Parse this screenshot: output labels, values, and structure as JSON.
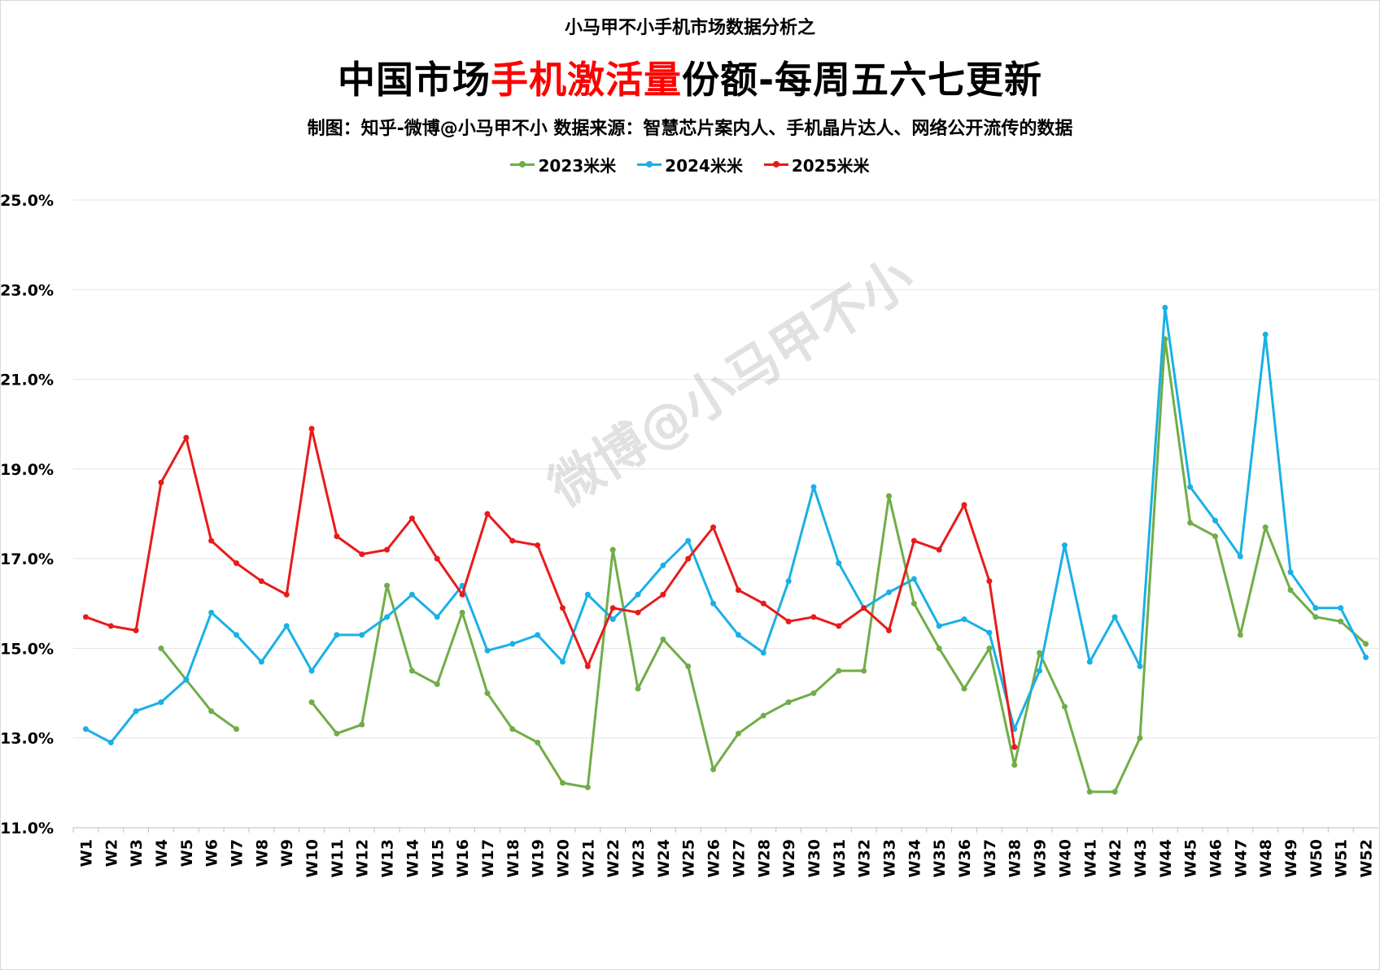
{
  "header": {
    "supertitle": "小马甲不小手机市场数据分析之",
    "title_part1": "中国市场",
    "title_highlight": "手机激活量",
    "title_part2": "份额-每周五六七更新",
    "subtitle": "制图：知乎-微博@小马甲不小  数据来源：智慧芯片案内人、手机晶片达人、网络公开流传的数据"
  },
  "watermark": "微博@小马甲不小",
  "colors": {
    "highlight": "#ff0000",
    "s2023": "#70ad47",
    "s2024": "#1ab0e6",
    "s2025": "#e81b1b"
  },
  "chart_data": {
    "type": "line",
    "title": "中国市场手机激活量份额-每周五六七更新",
    "xlabel": "",
    "ylabel": "",
    "ylim": [
      11.0,
      25.0
    ],
    "y_ticks": [
      11.0,
      13.0,
      15.0,
      17.0,
      19.0,
      21.0,
      23.0,
      25.0
    ],
    "y_tick_labels": [
      "11.0%",
      "13.0%",
      "15.0%",
      "17.0%",
      "19.0%",
      "21.0%",
      "23.0%",
      "25.0%"
    ],
    "grid": true,
    "legend_position": "top-center",
    "categories": [
      "W1",
      "W2",
      "W3",
      "W4",
      "W5",
      "W6",
      "W7",
      "W8",
      "W9",
      "W10",
      "W11",
      "W12",
      "W13",
      "W14",
      "W15",
      "W16",
      "W17",
      "W18",
      "W19",
      "W20",
      "W21",
      "W22",
      "W23",
      "W24",
      "W25",
      "W26",
      "W27",
      "W28",
      "W29",
      "W30",
      "W31",
      "W32",
      "W33",
      "W34",
      "W35",
      "W36",
      "W37",
      "W38",
      "W39",
      "W40",
      "W41",
      "W42",
      "W43",
      "W44",
      "W45",
      "W46",
      "W47",
      "W48",
      "W49",
      "W50",
      "W51",
      "W52"
    ],
    "series": [
      {
        "name": "2023米米",
        "color": "#70ad47",
        "values": [
          null,
          null,
          null,
          15.0,
          14.3,
          13.6,
          13.2,
          null,
          null,
          13.8,
          13.1,
          13.3,
          16.4,
          14.5,
          14.2,
          15.8,
          14.0,
          13.2,
          12.9,
          12.0,
          11.9,
          17.2,
          14.1,
          15.2,
          14.6,
          12.3,
          13.1,
          13.5,
          13.8,
          14.0,
          14.5,
          14.5,
          18.4,
          16.0,
          15.0,
          14.1,
          15.0,
          12.4,
          14.9,
          13.7,
          11.8,
          11.8,
          13.0,
          21.9,
          17.8,
          17.5,
          15.3,
          17.7,
          16.3,
          15.7,
          15.6,
          15.1
        ]
      },
      {
        "name": "2024米米",
        "color": "#1ab0e6",
        "values": [
          13.2,
          12.9,
          13.6,
          13.8,
          14.3,
          15.8,
          15.3,
          14.7,
          15.5,
          14.5,
          15.3,
          15.3,
          15.7,
          16.2,
          15.7,
          16.4,
          14.95,
          15.1,
          15.3,
          14.7,
          16.2,
          15.65,
          16.2,
          16.85,
          17.4,
          16.0,
          15.3,
          14.9,
          16.5,
          18.6,
          16.9,
          15.9,
          16.25,
          16.55,
          15.5,
          15.65,
          15.35,
          13.2,
          14.5,
          17.3,
          14.7,
          15.7,
          14.6,
          22.6,
          18.6,
          17.85,
          17.05,
          22.0,
          16.7,
          15.9,
          15.9,
          14.8
        ]
      },
      {
        "name": "2025米米",
        "color": "#e81b1b",
        "values": [
          15.7,
          15.5,
          15.4,
          18.7,
          19.7,
          17.4,
          16.9,
          16.5,
          16.2,
          19.9,
          17.5,
          17.1,
          17.2,
          17.9,
          17.0,
          16.2,
          18.0,
          17.4,
          17.3,
          15.9,
          14.6,
          15.9,
          15.8,
          16.2,
          17.0,
          17.7,
          16.3,
          16.0,
          15.6,
          15.7,
          15.5,
          15.9,
          15.4,
          17.4,
          17.2,
          18.2,
          16.5,
          12.8,
          null,
          null,
          null,
          null,
          null,
          null,
          null,
          null,
          null,
          null,
          null,
          null,
          null,
          null
        ]
      }
    ]
  }
}
